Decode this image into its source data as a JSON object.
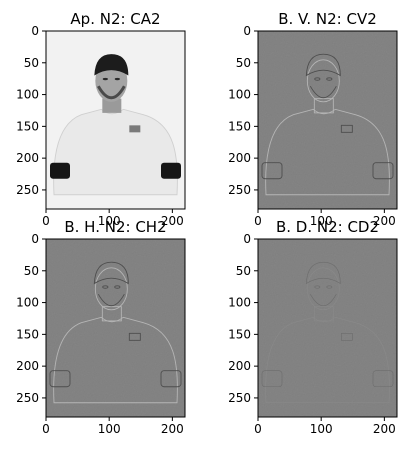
{
  "chart_data": [
    {
      "type": "heatmap",
      "title": "Ap. N2: CA2",
      "kind": "approximation",
      "colormap": "gray",
      "xlim": [
        0,
        220
      ],
      "ylim": [
        280,
        0
      ],
      "xticks": [
        0,
        100,
        200
      ],
      "yticks": [
        0,
        50,
        100,
        150,
        200,
        250
      ]
    },
    {
      "type": "heatmap",
      "title": "B. V. N2: CV2",
      "kind": "detail-vertical",
      "colormap": "gray",
      "xlim": [
        0,
        220
      ],
      "ylim": [
        280,
        0
      ],
      "xticks": [
        0,
        100,
        200
      ],
      "yticks": [
        0,
        50,
        100,
        150,
        200,
        250
      ]
    },
    {
      "type": "heatmap",
      "title": "B. H. N2: CH2",
      "kind": "detail-horizontal",
      "colormap": "gray",
      "xlim": [
        0,
        220
      ],
      "ylim": [
        280,
        0
      ],
      "xticks": [
        0,
        100,
        200
      ],
      "yticks": [
        0,
        50,
        100,
        150,
        200,
        250
      ]
    },
    {
      "type": "heatmap",
      "title": "B. D. N2: CD2",
      "kind": "detail-diagonal",
      "colormap": "gray",
      "xlim": [
        0,
        220
      ],
      "ylim": [
        280,
        0
      ],
      "xticks": [
        0,
        100,
        200
      ],
      "yticks": [
        0,
        50,
        100,
        150,
        200,
        250
      ]
    }
  ]
}
